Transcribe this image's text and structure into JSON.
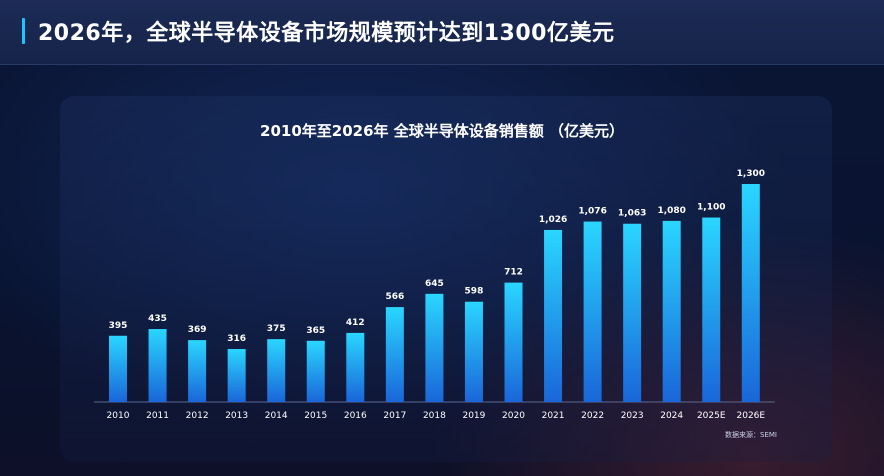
{
  "header": {
    "title": "2026年，全球半导体设备市场规模预计达到1300亿美元"
  },
  "colors": {
    "accent": "#1ec3ff",
    "bar_top": "#2ad6ff",
    "bar_bottom": "#1a66d9"
  },
  "chart_data": {
    "type": "bar",
    "title": "2010年至2026年  全球半导体设备销售额  （亿美元）",
    "categories": [
      "2010",
      "2011",
      "2012",
      "2013",
      "2014",
      "2015",
      "2016",
      "2017",
      "2018",
      "2019",
      "2020",
      "2021",
      "2022",
      "2023",
      "2024",
      "2025E",
      "2026E"
    ],
    "values": [
      395,
      435,
      369,
      316,
      375,
      365,
      412,
      566,
      645,
      598,
      712,
      1026,
      1076,
      1063,
      1080,
      1100,
      1300
    ],
    "value_labels": [
      "395",
      "435",
      "369",
      "316",
      "375",
      "365",
      "412",
      "566",
      "645",
      "598",
      "712",
      "1,026",
      "1,076",
      "1,063",
      "1,080",
      "1,100",
      "1,300"
    ],
    "ylim": [
      0,
      1300
    ],
    "xlabel": "",
    "ylabel": "",
    "source": "数据来源：SEMI"
  }
}
